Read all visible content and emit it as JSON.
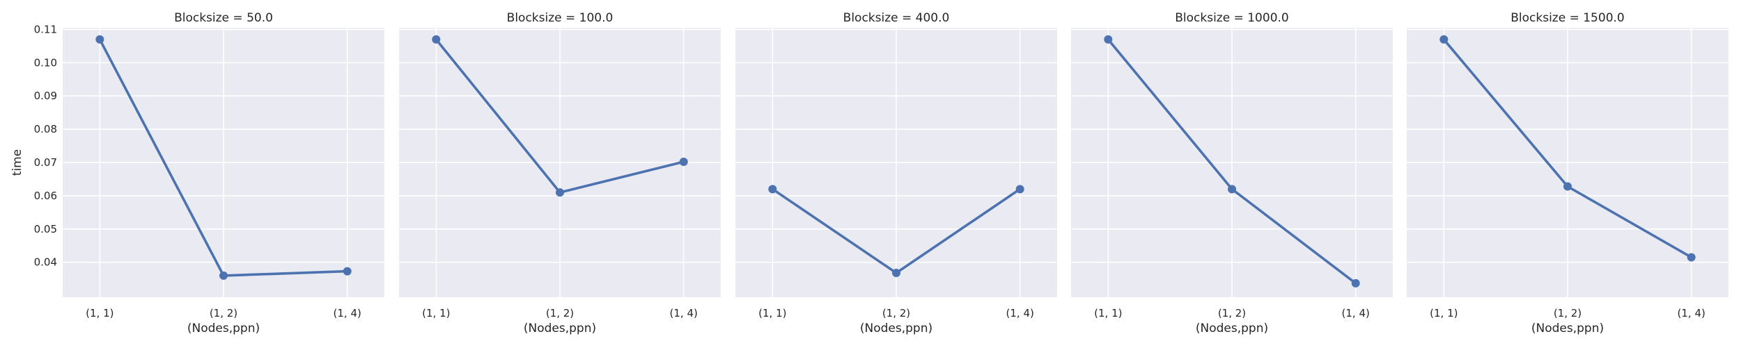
{
  "chart_data": {
    "type": "line",
    "ylabel": "time",
    "xlabel": "(Nodes,ppn)",
    "categories": [
      "(1, 1)",
      "(1, 2)",
      "(1, 4)"
    ],
    "yticks": [
      "0.04",
      "0.05",
      "0.06",
      "0.07",
      "0.08",
      "0.09",
      "0.10",
      "0.11"
    ],
    "ylim": [
      0.0295,
      0.1105
    ],
    "shared_y": true,
    "grid": true,
    "legend": "none",
    "colors": {
      "line": "#4c72b0",
      "background": "#eaeaf2",
      "grid": "#ffffff"
    },
    "panels": [
      {
        "title": "Blocksize = 50.0",
        "values": [
          0.107,
          0.036,
          0.0373
        ]
      },
      {
        "title": "Blocksize = 100.0",
        "values": [
          0.107,
          0.061,
          0.0702
        ]
      },
      {
        "title": "Blocksize = 400.0",
        "values": [
          0.062,
          0.0368,
          0.062
        ]
      },
      {
        "title": "Blocksize = 1000.0",
        "values": [
          0.107,
          0.062,
          0.0337
        ]
      },
      {
        "title": "Blocksize = 1500.0",
        "values": [
          0.107,
          0.0628,
          0.0415
        ]
      }
    ]
  }
}
